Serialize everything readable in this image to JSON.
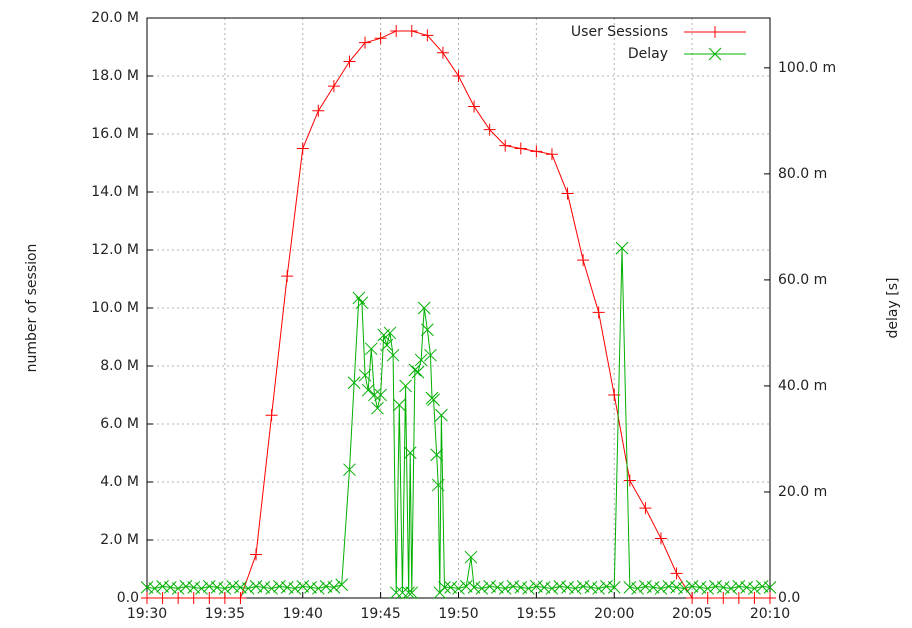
{
  "chart_data": {
    "type": "line",
    "ylabel": "number of session",
    "y2label": "delay [s]",
    "xlim": [
      1170,
      1210
    ],
    "xticks": [
      {
        "value": 1170,
        "label": "19:30"
      },
      {
        "value": 1175,
        "label": "19:35"
      },
      {
        "value": 1180,
        "label": "19:40"
      },
      {
        "value": 1185,
        "label": "19:45"
      },
      {
        "value": 1190,
        "label": "19:50"
      },
      {
        "value": 1195,
        "label": "19:55"
      },
      {
        "value": 1200,
        "label": "20:00"
      },
      {
        "value": 1205,
        "label": "20:05"
      },
      {
        "value": 1210,
        "label": "20:10"
      }
    ],
    "ylim": [
      0,
      20000000
    ],
    "yticks": [
      {
        "value": 0,
        "label": "0.0"
      },
      {
        "value": 2000000,
        "label": "2.0 M"
      },
      {
        "value": 4000000,
        "label": "4.0 M"
      },
      {
        "value": 6000000,
        "label": "6.0 M"
      },
      {
        "value": 8000000,
        "label": "8.0 M"
      },
      {
        "value": 10000000,
        "label": "10.0 M"
      },
      {
        "value": 12000000,
        "label": "12.0 M"
      },
      {
        "value": 14000000,
        "label": "14.0 M"
      },
      {
        "value": 16000000,
        "label": "16.0 M"
      },
      {
        "value": 18000000,
        "label": "18.0 M"
      },
      {
        "value": 20000000,
        "label": "20.0 M"
      }
    ],
    "y2lim": [
      0,
      0.1094
    ],
    "y2ticks": [
      {
        "value": 0,
        "label": "0.0"
      },
      {
        "value": 0.02,
        "label": "20.0 m"
      },
      {
        "value": 0.04,
        "label": "40.0 m"
      },
      {
        "value": 0.06,
        "label": "60.0 m"
      },
      {
        "value": 0.08,
        "label": "80.0 m"
      },
      {
        "value": 0.1,
        "label": "100.0 m"
      }
    ],
    "grid": true,
    "legend": "upper right",
    "series": [
      {
        "name": "User Sessions",
        "color": "#ff0000",
        "marker": "+",
        "x": [
          1170,
          1171,
          1172,
          1173,
          1174,
          1175,
          1176,
          1177,
          1178,
          1179,
          1180,
          1181,
          1182,
          1183,
          1184,
          1185,
          1186,
          1187,
          1188,
          1189,
          1190,
          1191,
          1192,
          1193,
          1194,
          1195,
          1196,
          1197,
          1198,
          1199,
          1200,
          1201,
          1202,
          1203,
          1204,
          1205,
          1206,
          1207,
          1208,
          1209,
          1210
        ],
        "values": [
          0,
          0,
          0,
          0,
          0,
          0,
          0,
          1500000,
          6300000,
          11100000,
          15500000,
          16800000,
          17650000,
          18500000,
          19150000,
          19300000,
          19550000,
          19550000,
          19400000,
          18800000,
          18000000,
          16950000,
          16150000,
          15600000,
          15500000,
          15400000,
          15300000,
          13950000,
          11650000,
          9850000,
          7000000,
          4050000,
          3100000,
          2050000,
          850000,
          0,
          0,
          0,
          0,
          0,
          0
        ]
      },
      {
        "name": "Delay",
        "color": "#00b000",
        "marker": "x",
        "axis": "y2",
        "x": [
          1170,
          1170.5,
          1171,
          1171.5,
          1172,
          1172.5,
          1173,
          1173.5,
          1174,
          1174.5,
          1175,
          1175.5,
          1176,
          1176.5,
          1177,
          1177.5,
          1178,
          1178.5,
          1179,
          1179.5,
          1180,
          1180.5,
          1181,
          1181.5,
          1182,
          1182.5,
          1183,
          1183.3,
          1183.6,
          1183.8,
          1184,
          1184.2,
          1184.4,
          1184.6,
          1184.8,
          1185,
          1185.2,
          1185.4,
          1185.6,
          1185.8,
          1186,
          1186.2,
          1186.4,
          1186.6,
          1186.8,
          1186.9,
          1187,
          1187.2,
          1187.4,
          1187.6,
          1187.8,
          1188,
          1188.2,
          1188.3,
          1188.4,
          1188.6,
          1188.7,
          1188.8,
          1188.9,
          1189.1,
          1189.5,
          1190,
          1190.5,
          1190.8,
          1191,
          1191.5,
          1192,
          1192.5,
          1193,
          1193.5,
          1194,
          1194.5,
          1195,
          1195.5,
          1196,
          1196.5,
          1197,
          1197.5,
          1198,
          1198.5,
          1199,
          1199.5,
          1200,
          1200.5,
          1201,
          1201.5,
          1202,
          1202.5,
          1203,
          1203.5,
          1204,
          1204.5,
          1205,
          1205.5,
          1206,
          1206.5,
          1207,
          1207.5,
          1208,
          1208.5,
          1209,
          1209.5,
          1210
        ],
        "values": [
          0.002,
          0.0018,
          0.0022,
          0.002,
          0.0018,
          0.0022,
          0.002,
          0.0018,
          0.0022,
          0.002,
          0.0018,
          0.0022,
          0.002,
          0.0018,
          0.0022,
          0.002,
          0.0018,
          0.0022,
          0.002,
          0.0018,
          0.0022,
          0.002,
          0.0018,
          0.0022,
          0.002,
          0.0025,
          0.0242,
          0.0406,
          0.0566,
          0.0557,
          0.042,
          0.0392,
          0.047,
          0.0383,
          0.0358,
          0.0383,
          0.0496,
          0.0477,
          0.05,
          0.0458,
          0.001,
          0.0364,
          0.001,
          0.04,
          0.001,
          0.0274,
          0.001,
          0.043,
          0.0426,
          0.0449,
          0.0547,
          0.0506,
          0.0458,
          0.0377,
          0.0374,
          0.027,
          0.0213,
          0.001,
          0.0345,
          0.002,
          0.002,
          0.0018,
          0.0022,
          0.0077,
          0.002,
          0.0018,
          0.0022,
          0.002,
          0.0018,
          0.0022,
          0.002,
          0.0018,
          0.0022,
          0.002,
          0.0018,
          0.0022,
          0.002,
          0.0018,
          0.0022,
          0.002,
          0.0018,
          0.0022,
          0.002,
          0.066,
          0.002,
          0.0018,
          0.0022,
          0.002,
          0.0018,
          0.0022,
          0.002,
          0.0018,
          0.0022,
          0.002,
          0.0018,
          0.0022,
          0.002,
          0.0018,
          0.0022,
          0.002,
          0.0018,
          0.0022,
          0.002
        ]
      }
    ]
  }
}
